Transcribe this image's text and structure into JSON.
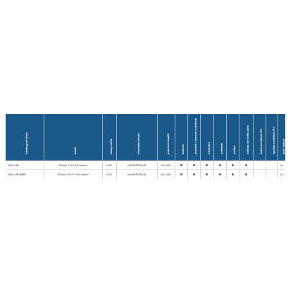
{
  "colors": {
    "header_bg": "#1a5a8a",
    "header_text": "#ffffff"
  },
  "table": {
    "headers": [
      "katalogové číslo",
      "kabel",
      "zdroj světla",
      "montážní dvora",
      "pracovní napětí",
      "bodové",
      "pouliční / obecné osvětlení",
      "ozvovací",
      "světelné",
      "měkké",
      "ochran. ke světu jisto",
      "boční osvětlení IP2",
      "spodní osvětlení IP2",
      "kód / balení"
    ],
    "rows": [
      {
        "code": "1111 L/P",
        "cable": "200cm YLIU 4x0,5mm²",
        "light": "LED",
        "mount": "UNIVERZÁLNÍ",
        "voltage": "12V-24V",
        "unit": "10",
        "dots": [
          true,
          true,
          true,
          true,
          true,
          true,
          false,
          false
        ]
      },
      {
        "code": "1111 L/P ADR",
        "cable": "200cm FLRYY 4x0,5mm²",
        "light": "LED",
        "mount": "UNIVERZÁLNÍ",
        "voltage": "12V-24V",
        "unit": "10",
        "dots": [
          true,
          true,
          true,
          true,
          true,
          true,
          false,
          false
        ]
      }
    ]
  }
}
